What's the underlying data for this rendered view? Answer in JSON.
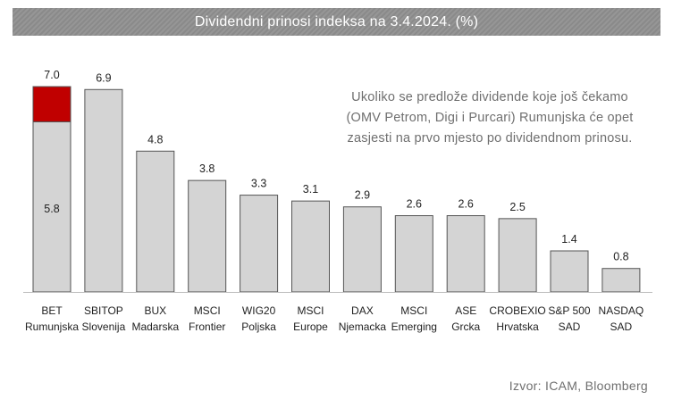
{
  "chart_data": {
    "type": "bar",
    "title": "Dividendni prinosi indeksa na 3.4.2024. (%)",
    "categories": [
      [
        "BET",
        "Rumunjska"
      ],
      [
        "SBITOP",
        "Slovenija"
      ],
      [
        "BUX",
        "Madarska"
      ],
      [
        "MSCI",
        "Frontier"
      ],
      [
        "WIG20",
        "Poljska"
      ],
      [
        "MSCI",
        "Europe"
      ],
      [
        "DAX",
        "Njemacka"
      ],
      [
        "MSCI",
        "Emerging"
      ],
      [
        "ASE",
        "Grcka"
      ],
      [
        "CROBEXIO",
        "Hrvatska"
      ],
      [
        "S&P 500",
        "SAD"
      ],
      [
        "NASDAQ",
        "SAD"
      ]
    ],
    "values": [
      7.0,
      6.9,
      4.8,
      3.8,
      3.3,
      3.1,
      2.9,
      2.6,
      2.6,
      2.5,
      1.4,
      0.8
    ],
    "value_labels": [
      "7.0",
      "6.9",
      "4.8",
      "3.8",
      "3.3",
      "3.1",
      "2.9",
      "2.6",
      "2.6",
      "2.5",
      "1.4",
      "0.8"
    ],
    "highlight": {
      "index": 0,
      "base_value": 5.8,
      "base_label": "5.8",
      "top_color": "#c00000"
    },
    "bar_color": "#d4d4d4",
    "ylim": [
      0,
      7.0
    ],
    "grid": false,
    "legend": "none",
    "annotation": "Ukoliko se predlože dividende koje još čekamo (OMV Petrom, Digi i Purcari) Rumunjska će opet zasjesti na prvo mjesto po dividendnom prinosu.",
    "source": "Izvor: ICAM, Bloomberg"
  }
}
